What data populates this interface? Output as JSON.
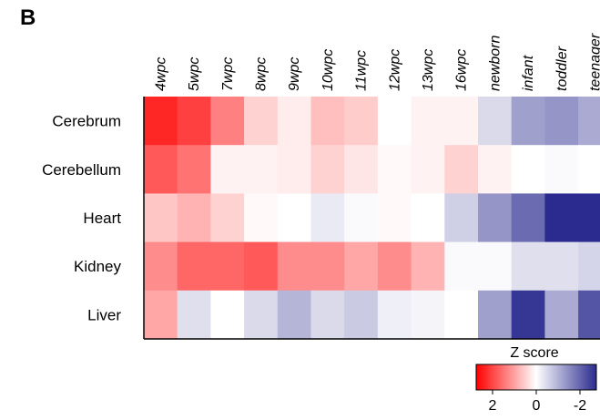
{
  "panel_label": "B",
  "chart_data": {
    "type": "heatmap",
    "columns": [
      "4wpc",
      "5wpc",
      "7wpc",
      "8wpc",
      "9wpc",
      "10wpc",
      "11wpc",
      "12wpc",
      "13wpc",
      "16wpc",
      "newborn",
      "infant",
      "toddler",
      "teenager"
    ],
    "rows": [
      "Cerebrum",
      "Cerebellum",
      "Heart",
      "Kidney",
      "Liver"
    ],
    "values": [
      [
        1.7,
        1.5,
        1.0,
        0.35,
        0.15,
        0.5,
        0.4,
        0.0,
        0.1,
        0.1,
        -0.35,
        -0.9,
        -1.0,
        -0.8
      ],
      [
        1.3,
        1.1,
        0.1,
        0.1,
        0.15,
        0.35,
        0.2,
        0.05,
        0.1,
        0.35,
        0.1,
        0.0,
        -0.05,
        0.0
      ],
      [
        0.45,
        0.6,
        0.35,
        0.05,
        0.0,
        -0.2,
        -0.05,
        0.05,
        0.0,
        -0.45,
        -1.0,
        -1.4,
        -2.0,
        -2.0
      ],
      [
        0.9,
        1.2,
        1.2,
        1.3,
        0.9,
        0.9,
        0.7,
        0.9,
        0.6,
        -0.05,
        -0.05,
        -0.3,
        -0.3,
        -0.4
      ],
      [
        0.7,
        -0.3,
        0.0,
        -0.35,
        -0.7,
        -0.35,
        -0.5,
        -0.15,
        -0.1,
        0.0,
        -0.9,
        -1.9,
        -0.8,
        -1.6
      ]
    ],
    "legend": {
      "title": "Z score",
      "ticks": [
        "2",
        "0",
        "-2"
      ],
      "range": [
        2,
        -2
      ]
    },
    "colors": {
      "high": "#ff0000",
      "mid": "#ffffff",
      "low": "#2b2b8f"
    }
  }
}
